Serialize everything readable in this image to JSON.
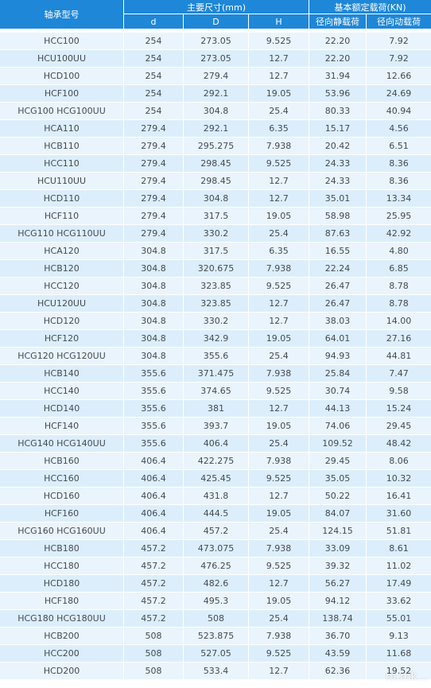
{
  "header": {
    "model": "轴承型号",
    "dimensions": "主要尺寸(mm)",
    "load": "基本额定载荷(KN)",
    "d": "d",
    "D": "D",
    "H": "H",
    "static": "径向静载荷",
    "dynamic": "径向动载荷"
  },
  "rows": [
    [
      "HCC100",
      "254",
      "273.05",
      "9.525",
      "22.20",
      "7.92"
    ],
    [
      "HCU100UU",
      "254",
      "273.05",
      "12.7",
      "22.20",
      "7.92"
    ],
    [
      "HCD100",
      "254",
      "279.4",
      "12.7",
      "31.94",
      "12.66"
    ],
    [
      "HCF100",
      "254",
      "292.1",
      "19.05",
      "53.96",
      "24.69"
    ],
    [
      "HCG100 HCG100UU",
      "254",
      "304.8",
      "25.4",
      "80.33",
      "40.94"
    ],
    [
      "HCA110",
      "279.4",
      "292.1",
      "6.35",
      "15.17",
      "4.56"
    ],
    [
      "HCB110",
      "279.4",
      "295.275",
      "7.938",
      "20.42",
      "6.51"
    ],
    [
      "HCC110",
      "279.4",
      "298.45",
      "9.525",
      "24.33",
      "8.36"
    ],
    [
      "HCU110UU",
      "279.4",
      "298.45",
      "12.7",
      "24.33",
      "8.36"
    ],
    [
      "HCD110",
      "279.4",
      "304.8",
      "12.7",
      "35.01",
      "13.34"
    ],
    [
      "HCF110",
      "279.4",
      "317.5",
      "19.05",
      "58.98",
      "25.95"
    ],
    [
      "HCG110 HCG110UU",
      "279.4",
      "330.2",
      "25.4",
      "87.63",
      "42.92"
    ],
    [
      "HCA120",
      "304.8",
      "317.5",
      "6.35",
      "16.55",
      "4.80"
    ],
    [
      "HCB120",
      "304.8",
      "320.675",
      "7.938",
      "22.24",
      "6.85"
    ],
    [
      "HCC120",
      "304.8",
      "323.85",
      "9.525",
      "26.47",
      "8.78"
    ],
    [
      "HCU120UU",
      "304.8",
      "323.85",
      "12.7",
      "26.47",
      "8.78"
    ],
    [
      "HCD120",
      "304.8",
      "330.2",
      "12.7",
      "38.03",
      "14.00"
    ],
    [
      "HCF120",
      "304.8",
      "342.9",
      "19.05",
      "64.01",
      "27.16"
    ],
    [
      "HCG120 HCG120UU",
      "304.8",
      "355.6",
      "25.4",
      "94.93",
      "44.81"
    ],
    [
      "HCB140",
      "355.6",
      "371.475",
      "7.938",
      "25.84",
      "7.47"
    ],
    [
      "HCC140",
      "355.6",
      "374.65",
      "9.525",
      "30.74",
      "9.58"
    ],
    [
      "HCD140",
      "355.6",
      "381",
      "12.7",
      "44.13",
      "15.24"
    ],
    [
      "HCF140",
      "355.6",
      "393.7",
      "19.05",
      "74.06",
      "29.45"
    ],
    [
      "HCG140 HCG140UU",
      "355.6",
      "406.4",
      "25.4",
      "109.52",
      "48.42"
    ],
    [
      "HCB160",
      "406.4",
      "422.275",
      "7.938",
      "29.45",
      "8.06"
    ],
    [
      "HCC160",
      "406.4",
      "425.45",
      "9.525",
      "35.05",
      "10.32"
    ],
    [
      "HCD160",
      "406.4",
      "431.8",
      "12.7",
      "50.22",
      "16.41"
    ],
    [
      "HCF160",
      "406.4",
      "444.5",
      "19.05",
      "84.07",
      "31.60"
    ],
    [
      "HCG160 HCG160UU",
      "406.4",
      "457.2",
      "25.4",
      "124.15",
      "51.81"
    ],
    [
      "HCB180",
      "457.2",
      "473.075",
      "7.938",
      "33.09",
      "8.61"
    ],
    [
      "HCC180",
      "457.2",
      "476.25",
      "9.525",
      "39.32",
      "11.02"
    ],
    [
      "HCD180",
      "457.2",
      "482.6",
      "12.7",
      "56.27",
      "17.49"
    ],
    [
      "HCF180",
      "457.2",
      "495.3",
      "19.05",
      "94.12",
      "33.62"
    ],
    [
      "HCG180 HCG180UU",
      "457.2",
      "508",
      "25.4",
      "138.74",
      "55.01"
    ],
    [
      "HCB200",
      "508",
      "523.875",
      "7.938",
      "36.70",
      "9.13"
    ],
    [
      "HCC200",
      "508",
      "527.05",
      "9.525",
      "43.59",
      "11.68"
    ],
    [
      "HCD200",
      "508",
      "533.4",
      "12.7",
      "62.36",
      "19.52"
    ]
  ],
  "watermark": "m.mk..."
}
